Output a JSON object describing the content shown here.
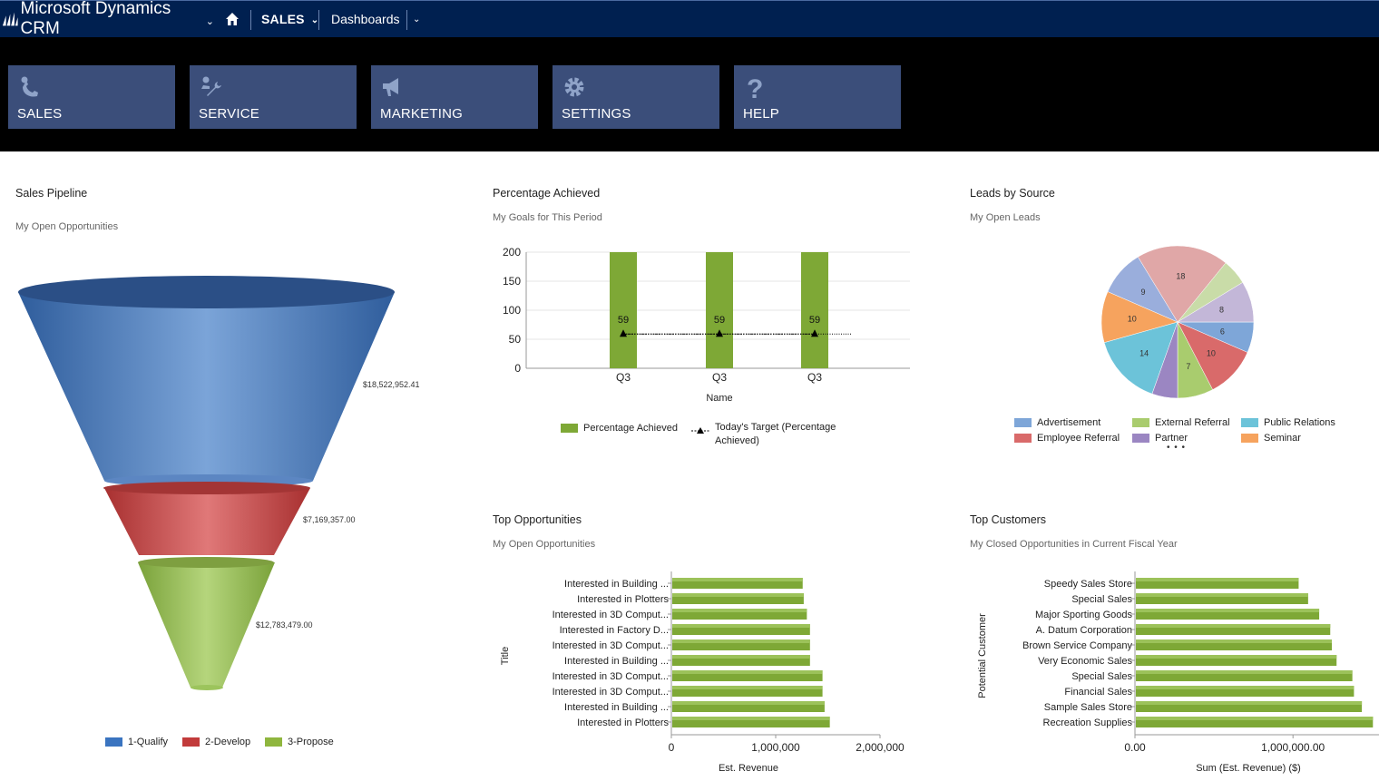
{
  "nav": {
    "brand": "Microsoft Dynamics CRM",
    "area": "SALES",
    "page": "Dashboards"
  },
  "tiles": [
    {
      "label": "SALES",
      "icon": "phone-person-icon"
    },
    {
      "label": "SERVICE",
      "icon": "wrench-person-icon"
    },
    {
      "label": "MARKETING",
      "icon": "megaphone-icon"
    },
    {
      "label": "SETTINGS",
      "icon": "gear-icon"
    },
    {
      "label": "HELP",
      "icon": "question-icon"
    }
  ],
  "panels": {
    "pipeline": {
      "title": "Sales Pipeline",
      "subtitle": "My Open Opportunities"
    },
    "percentage": {
      "title": "Percentage Achieved",
      "subtitle": "My Goals for This Period"
    },
    "leads": {
      "title": "Leads by Source",
      "subtitle": "My Open Leads"
    },
    "top_opps": {
      "title": "Top Opportunities",
      "subtitle": "My Open Opportunities"
    },
    "top_customers": {
      "title": "Top Customers",
      "subtitle": "My Closed Opportunities in Current Fiscal Year"
    }
  },
  "colors": {
    "nav": "#002050",
    "tile": "#3b4e7a",
    "green": "#7ea836",
    "qualify": "#3a74c0",
    "develop": "#c23b3b",
    "propose": "#8fb63e"
  },
  "chart_data": [
    {
      "type": "funnel",
      "title": "Sales Pipeline",
      "categories": [
        "1-Qualify",
        "2-Develop",
        "3-Propose"
      ],
      "values": [
        18522952.41,
        7169357.0,
        12783479.0
      ],
      "value_labels": [
        "$18,522,952.41",
        "$7,169,357.00",
        "$12,783,479.00"
      ],
      "legend": "bottom"
    },
    {
      "type": "bar",
      "title": "Percentage Achieved",
      "categories": [
        "Q3",
        "Q3",
        "Q3"
      ],
      "series": [
        {
          "name": "Percentage Achieved",
          "values": [
            200,
            200,
            200
          ]
        },
        {
          "name": "Today's Target (Percentage Achieved)",
          "values": [
            59,
            59,
            59
          ]
        }
      ],
      "data_labels": [
        "59",
        "59",
        "59"
      ],
      "xlabel": "Name",
      "ylabel": "",
      "yticks": [
        "0",
        "50",
        "100",
        "150",
        "200"
      ],
      "ylim": [
        0,
        200
      ],
      "legend": "bottom"
    },
    {
      "type": "pie",
      "title": "Leads by Source",
      "slices": [
        {
          "label": "Advertisement",
          "value": 6,
          "color": "#7ea6d8"
        },
        {
          "label": "Employee Referral",
          "value": 10,
          "color": "#d96a6a"
        },
        {
          "label": "External Referral",
          "value": 7,
          "color": "#a9cc6e"
        },
        {
          "label": "Partner",
          "value": 5,
          "color": "#9b86c2"
        },
        {
          "label": "Public Relations",
          "value": 14,
          "color": "#6cc3d9"
        },
        {
          "label": "Seminar",
          "value": 10,
          "color": "#f6a35e"
        },
        {
          "label": "",
          "value": 9,
          "color": "#9aaedc"
        },
        {
          "label": "",
          "value": 18,
          "color": "#e0a7a7"
        },
        {
          "label": "",
          "value": 5,
          "color": "#c9dca8"
        },
        {
          "label": "",
          "value": 8,
          "color": "#c3b7d8"
        }
      ],
      "legend_more": "• • •",
      "legend": "bottom"
    },
    {
      "type": "bar",
      "orientation": "horizontal",
      "title": "Top Opportunities",
      "categories": [
        "Interested in Building ...",
        "Interested in Plotters",
        "Interested in 3D Comput...",
        "Interested in Factory D...",
        "Interested in 3D Comput...",
        "Interested in Building ...",
        "Interested in 3D Comput...",
        "Interested in 3D Comput...",
        "Interested in Building ...",
        "Interested in Plotters"
      ],
      "values": [
        1250000,
        1260000,
        1290000,
        1320000,
        1320000,
        1320000,
        1440000,
        1440000,
        1460000,
        1510000
      ],
      "xlabel": "Est. Revenue",
      "ylabel": "Title",
      "xticks": [
        "0",
        "1,000,000",
        "2,000,000"
      ],
      "xlim": [
        0,
        2000000
      ]
    },
    {
      "type": "bar",
      "orientation": "horizontal",
      "title": "Top Customers",
      "categories": [
        "Speedy Sales Store",
        "Special Sales",
        "Major Sporting Goods",
        "A. Datum Corporation",
        "Brown Service Company",
        "Very Economic Sales",
        "Special Sales",
        "Financial Sales",
        "Sample Sales Store",
        "Recreation Supplies"
      ],
      "values": [
        1030000,
        1090000,
        1160000,
        1230000,
        1240000,
        1270000,
        1370000,
        1380000,
        1430000,
        1500000
      ],
      "xlabel": "Sum (Est. Revenue) ($)",
      "ylabel": "Potential Customer",
      "xticks": [
        "0.00",
        "1,000,000.00"
      ],
      "xlim": [
        0,
        1550000
      ]
    }
  ]
}
